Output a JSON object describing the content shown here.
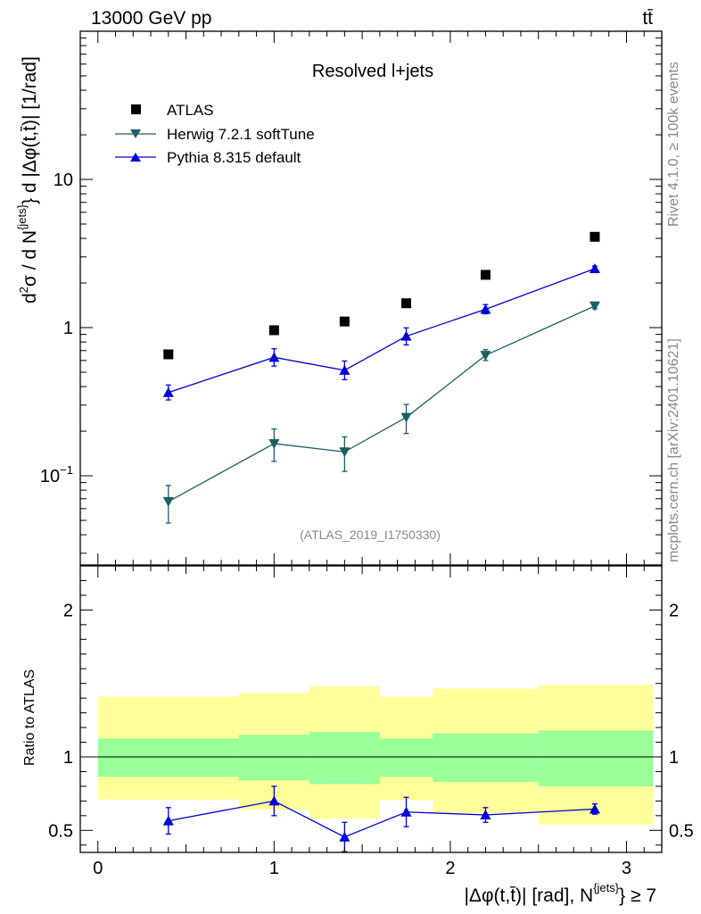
{
  "header": {
    "energy": "13000 GeV pp",
    "process": "tt̄"
  },
  "side_text": {
    "rivet": "Rivet 4.1.0, ≥ 100k events",
    "source": "mcplots.cern.ch [arXiv:2401.10621]"
  },
  "analysis_id": "(ATLAS_2019_I1750330)",
  "chart_data": [
    {
      "type": "scatter",
      "panel": "main",
      "title": "Resolved l+jets",
      "ylabel_parts": {
        "d2": "d",
        "sup2": "2",
        "sigma": "σ / d N",
        "supjets": "{jets}",
        "rest": "} d |Δφ(t,t̄)| [1/rad]"
      },
      "yscale": "log",
      "ylim": [
        0.025,
        100
      ],
      "xlim": [
        -0.1,
        3.2
      ],
      "yticks": [
        {
          "value": 10,
          "label": "10"
        },
        {
          "value": 1,
          "label": "1"
        },
        {
          "value": 0.1,
          "label_base": "10",
          "label_exp": "−1"
        }
      ],
      "x": [
        0.4,
        1.0,
        1.4,
        1.75,
        2.2,
        2.82
      ],
      "series": [
        {
          "name": "ATLAS",
          "style": "data",
          "color": "#000000",
          "values": [
            0.66,
            0.96,
            1.1,
            1.46,
            2.27,
            4.1
          ]
        },
        {
          "name": "Herwig 7.2.1 softTune",
          "style": "line-triangle-down",
          "color": "#1c5f66",
          "values": [
            0.067,
            0.165,
            0.145,
            0.248,
            0.65,
            1.4
          ],
          "err_low": [
            0.019,
            0.04,
            0.038,
            0.055,
            0.05,
            0.06
          ],
          "err_high": [
            0.019,
            0.042,
            0.038,
            0.055,
            0.06,
            0.06
          ]
        },
        {
          "name": "Pythia 8.315 default",
          "style": "line-triangle-up",
          "color": "#0000d8",
          "values": [
            0.365,
            0.63,
            0.515,
            0.875,
            1.33,
            2.5
          ],
          "err_low": [
            0.04,
            0.08,
            0.07,
            0.11,
            0.09,
            0.1
          ],
          "err_high": [
            0.045,
            0.09,
            0.08,
            0.12,
            0.1,
            0.1
          ]
        }
      ]
    },
    {
      "type": "scatter",
      "panel": "ratio",
      "ylabel": "Ratio to ATLAS",
      "ylim": [
        0.35,
        2.3
      ],
      "xlim": [
        -0.1,
        3.2
      ],
      "yticks": [
        {
          "value": 2,
          "label": "2"
        },
        {
          "value": 1,
          "label": "1"
        },
        {
          "value": 0.5,
          "label": "0.5"
        }
      ],
      "xticks": [
        {
          "value": 0,
          "label": "0"
        },
        {
          "value": 1,
          "label": "1"
        },
        {
          "value": 2,
          "label": "2"
        },
        {
          "value": 3,
          "label": "3"
        }
      ],
      "xlabel": "|Δφ(t,t̄)| [rad], N",
      "xlabel_sup": "{jets}",
      "xlabel_rest": "} ≥ 7",
      "bands": [
        {
          "x0": 0.0,
          "x1": 0.8,
          "yellow": [
            0.71,
            1.41
          ],
          "green": [
            0.865,
            1.125
          ]
        },
        {
          "x0": 0.8,
          "x1": 1.2,
          "yellow": [
            0.64,
            1.435
          ],
          "green": [
            0.84,
            1.15
          ]
        },
        {
          "x0": 1.2,
          "x1": 1.6,
          "yellow": [
            0.58,
            1.48
          ],
          "green": [
            0.815,
            1.17
          ]
        },
        {
          "x0": 1.6,
          "x1": 1.9,
          "yellow": [
            0.705,
            1.41
          ],
          "green": [
            0.865,
            1.125
          ]
        },
        {
          "x0": 1.9,
          "x1": 2.5,
          "yellow": [
            0.62,
            1.465
          ],
          "green": [
            0.83,
            1.16
          ]
        },
        {
          "x0": 2.5,
          "x1": 3.15,
          "yellow": [
            0.54,
            1.49
          ],
          "green": [
            0.8,
            1.18
          ]
        }
      ],
      "reference_line": 1,
      "x": [
        0.4,
        1.0,
        1.4,
        1.75,
        2.2,
        2.82
      ],
      "series": [
        {
          "name": "Pythia 8.315 default",
          "color": "#0000d8",
          "values": [
            0.565,
            0.7,
            0.455,
            0.625,
            0.605,
            0.645
          ],
          "err_low": [
            0.09,
            0.1,
            0.1,
            0.1,
            0.05,
            0.035
          ],
          "err_high": [
            0.09,
            0.1,
            0.1,
            0.1,
            0.05,
            0.035
          ]
        }
      ]
    }
  ]
}
